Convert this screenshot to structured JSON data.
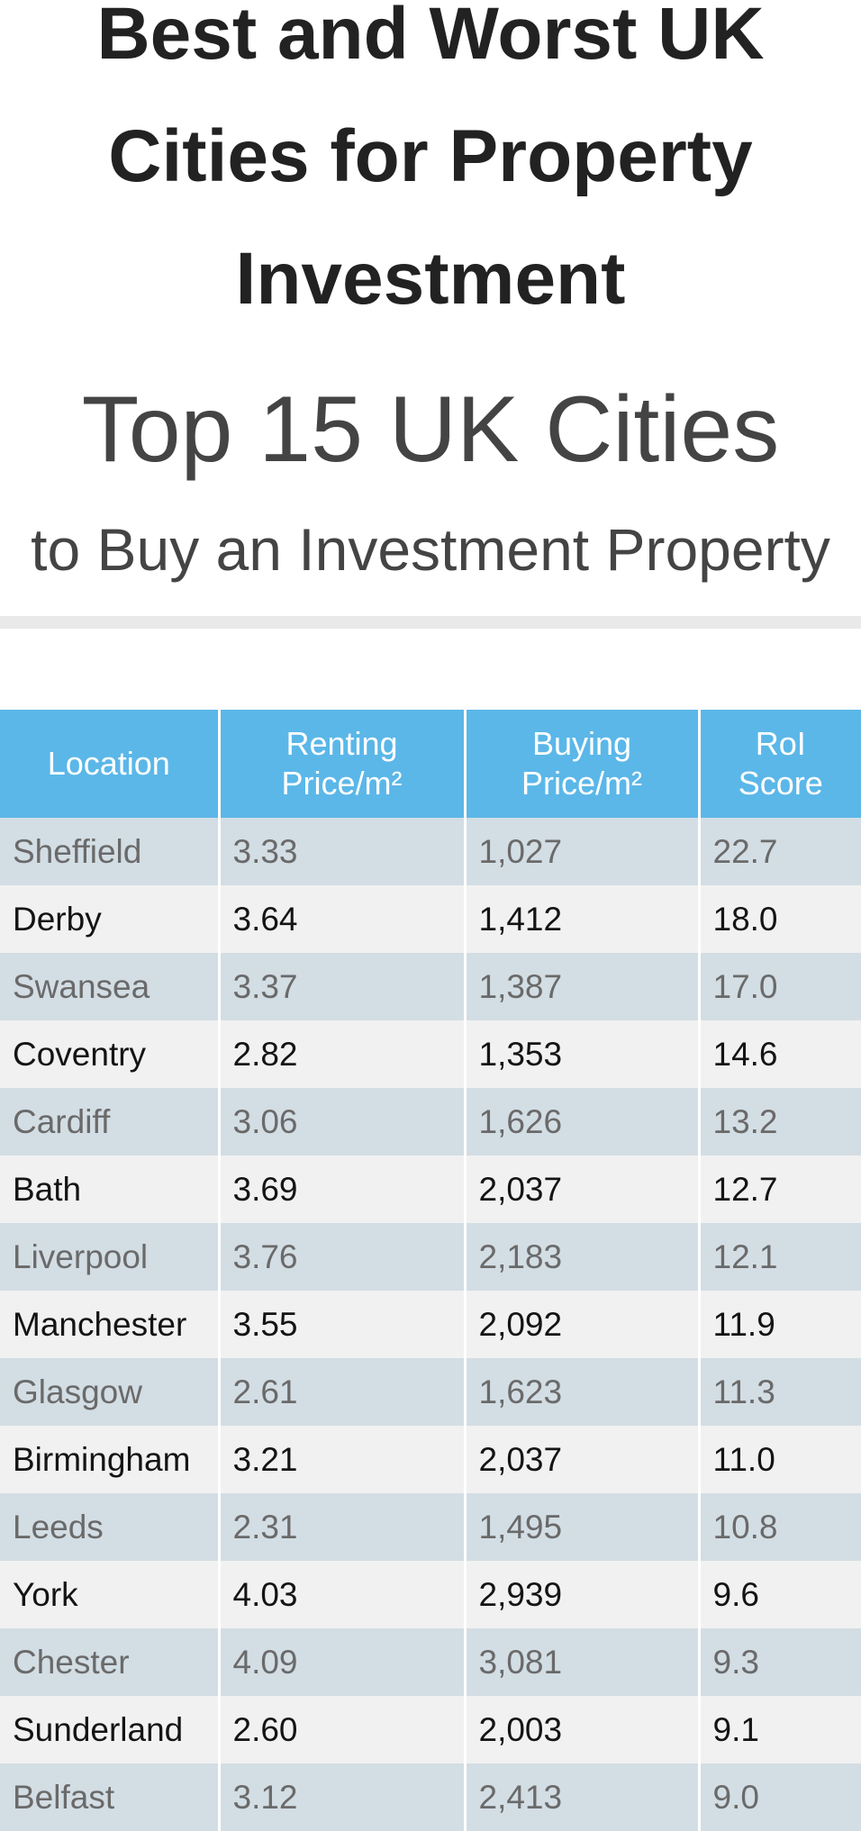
{
  "header": {
    "title": "Best and Worst UK Cities for Property Investment",
    "subtitle_1": "Top 15 UK Cities",
    "subtitle_2": "to Buy an Investment Property"
  },
  "chart_data": {
    "type": "table",
    "title": "Best and Worst UK Cities for Property Investment",
    "columns": [
      "Location",
      "Renting Price/m²",
      "Buying Price/m²",
      "RoI Score"
    ],
    "rows": [
      [
        "Sheffield",
        "3.33",
        "1,027",
        "22.7"
      ],
      [
        "Derby",
        "3.64",
        "1,412",
        "18.0"
      ],
      [
        "Swansea",
        "3.37",
        "1,387",
        "17.0"
      ],
      [
        "Coventry",
        "2.82",
        "1,353",
        "14.6"
      ],
      [
        "Cardiff",
        "3.06",
        "1,626",
        "13.2"
      ],
      [
        "Bath",
        "3.69",
        "2,037",
        "12.7"
      ],
      [
        "Liverpool",
        "3.76",
        "2,183",
        "12.1"
      ],
      [
        "Manchester",
        "3.55",
        "2,092",
        "11.9"
      ],
      [
        "Glasgow",
        "2.61",
        "1,623",
        "11.3"
      ],
      [
        "Birmingham",
        "3.21",
        "2,037",
        "11.0"
      ],
      [
        "Leeds",
        "2.31",
        "1,495",
        "10.8"
      ],
      [
        "York",
        "4.03",
        "2,939",
        "9.6"
      ],
      [
        "Chester",
        "4.09",
        "3,081",
        "9.3"
      ],
      [
        "Sunderland",
        "2.60",
        "2,003",
        "9.1"
      ],
      [
        "Belfast",
        "3.12",
        "2,413",
        "9.0"
      ]
    ],
    "header_color": "#5bb7e8",
    "stripe_colors": [
      "#d3dde4",
      "#f1f1f1"
    ]
  }
}
